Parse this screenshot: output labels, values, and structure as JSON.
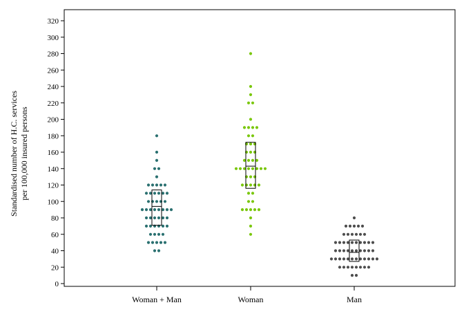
{
  "chart_data": {
    "type": "scatter",
    "subtype": "dot-strip with median and interquartile box",
    "ylabel_line1": "Standardised number of H.C. services",
    "ylabel_line2": "per 100,000 insured persons",
    "xlabel": "",
    "ylim": [
      0,
      330
    ],
    "yticks": [
      0,
      20,
      40,
      60,
      80,
      100,
      120,
      140,
      160,
      180,
      200,
      220,
      240,
      260,
      280,
      300,
      320
    ],
    "grid": false,
    "categories": [
      "Woman + Man",
      "Woman",
      "Man"
    ],
    "series": [
      {
        "category": "Woman + Man",
        "color": "#2a7070",
        "box": {
          "q1": 71,
          "median": 94,
          "q3": 114
        },
        "values": [
          180,
          160,
          150,
          140,
          140,
          130,
          120,
          120,
          120,
          120,
          120,
          110,
          110,
          110,
          110,
          110,
          110,
          100,
          100,
          100,
          100,
          100,
          90,
          90,
          90,
          90,
          90,
          90,
          90,
          90,
          80,
          80,
          80,
          80,
          80,
          80,
          70,
          70,
          70,
          70,
          70,
          70,
          60,
          60,
          60,
          60,
          50,
          50,
          50,
          50,
          50,
          40,
          40
        ]
      },
      {
        "category": "Woman",
        "color": "#7ac70c",
        "box": {
          "q1": 116,
          "median": 143,
          "q3": 172
        },
        "values": [
          280,
          240,
          230,
          220,
          220,
          200,
          190,
          190,
          190,
          190,
          180,
          180,
          170,
          170,
          170,
          160,
          160,
          160,
          150,
          150,
          150,
          150,
          140,
          140,
          140,
          140,
          140,
          140,
          140,
          140,
          130,
          130,
          130,
          120,
          120,
          120,
          120,
          120,
          110,
          110,
          100,
          100,
          90,
          90,
          90,
          90,
          90,
          80,
          70,
          60
        ]
      },
      {
        "category": "Man",
        "color": "#4d4d4d",
        "box": {
          "q1": 27,
          "median": 38,
          "q3": 53
        },
        "values": [
          80,
          70,
          70,
          70,
          70,
          70,
          60,
          60,
          60,
          60,
          60,
          60,
          50,
          50,
          50,
          50,
          50,
          50,
          50,
          50,
          50,
          50,
          40,
          40,
          40,
          40,
          40,
          40,
          40,
          40,
          40,
          40,
          30,
          30,
          30,
          30,
          30,
          30,
          30,
          30,
          30,
          30,
          30,
          30,
          20,
          20,
          20,
          20,
          20,
          20,
          20,
          20,
          10,
          10
        ]
      }
    ]
  }
}
